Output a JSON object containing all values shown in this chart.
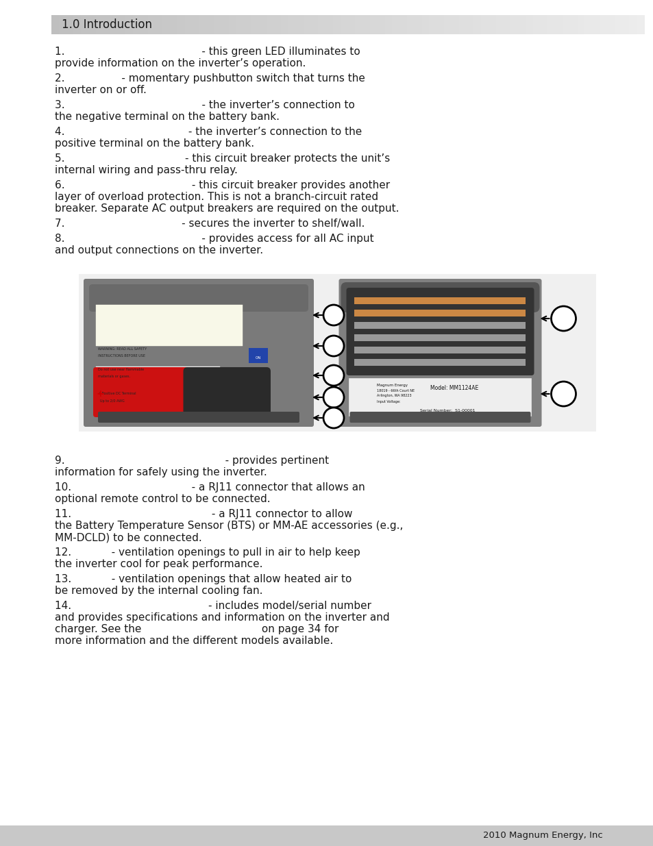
{
  "title": "1.0 Introduction",
  "title_fontsize": 12,
  "body_fontsize": 11,
  "page_bg": "#ffffff",
  "footer_text": "2010 Magnum Energy, Inc",
  "text_color": "#1a1a1a",
  "paragraphs": [
    [
      "1.",
      "                                         - this green LED illuminates to\nprovide information on the inverter’s operation."
    ],
    [
      "2.",
      "                 - momentary pushbutton switch that turns the\ninverter on or off."
    ],
    [
      "3.",
      "                                         - the inverter’s connection to\nthe negative terminal on the battery bank."
    ],
    [
      "4.",
      "                                     - the inverter’s connection to the\npositive terminal on the battery bank."
    ],
    [
      "5.",
      "                                    - this circuit breaker protects the unit’s\ninternal wiring and pass-thru relay."
    ],
    [
      "6.",
      "                                      - this circuit breaker provides another\nlayer of overload protection. This is not a branch-circuit rated\nbreaker. Separate AC output breakers are required on the output."
    ],
    [
      "7.",
      "                                   - secures the inverter to shelf/wall."
    ],
    [
      "8.",
      "                                         - provides access for all AC input\nand output connections on the inverter."
    ]
  ],
  "paragraphs2": [
    [
      "9.",
      "                                                - provides pertinent\ninformation for safely using the inverter."
    ],
    [
      "10.",
      "                                    - a RJ11 connector that allows an\noptional remote control to be connected."
    ],
    [
      "11.",
      "                                          - a RJ11 connector to allow\nthe Battery Temperature Sensor (BTS) or MM-AE accessories (e.g.,\nMM-DCLD) to be connected."
    ],
    [
      "12.",
      "            - ventilation openings to pull in air to help keep\nthe inverter cool for peak performance."
    ],
    [
      "13.",
      "            - ventilation openings that allow heated air to\nbe removed by the internal cooling fan."
    ],
    [
      "14.",
      "                                         - includes model/serial number\nand provides specifications and information on the inverter and\ncharger. See the                                    on page 34 for\nmore information and the different models available."
    ]
  ]
}
